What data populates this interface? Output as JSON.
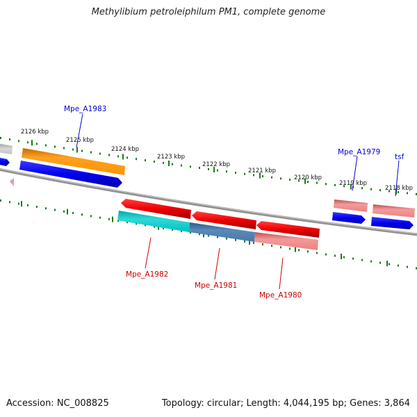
{
  "title": "Methylibium petroleiphilum PM1, complete genome",
  "footer": {
    "accession": "Accession: NC_008825",
    "stats": "Topology: circular; Length: 4,044,195 bp; Genes: 3,864"
  },
  "ticks": [
    "2126 kbp",
    "2125 kbp",
    "2124 kbp",
    "2123 kbp",
    "2122 kbp",
    "2121 kbp",
    "2120 kbp",
    "2119 kbp",
    "2118 kbp"
  ],
  "gene_labels": {
    "top": [
      "Mpe_A1983",
      "Mpe_A1979",
      "tsf"
    ],
    "bottom": [
      "Mpe_A1982",
      "Mpe_A1981",
      "Mpe_A1980"
    ]
  },
  "colors": {
    "label_top": "#0000cc",
    "label_bottom": "#cc0000",
    "tick_marks": "#1a7a1a",
    "backbone": "#808080"
  }
}
